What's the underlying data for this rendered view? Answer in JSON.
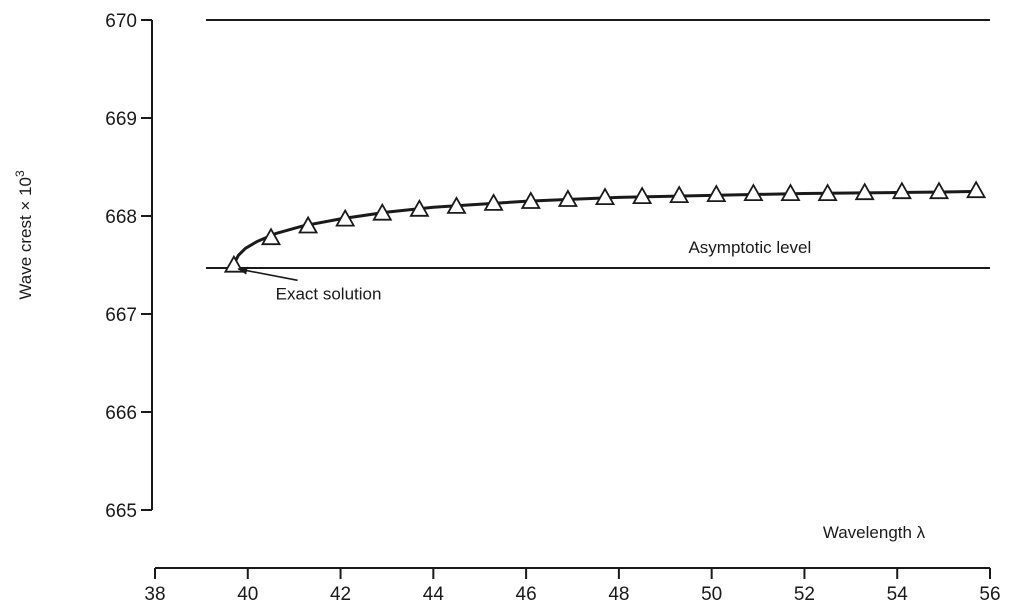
{
  "chart_data": {
    "type": "line",
    "xlabel": "Wavelength λ",
    "ylabel_main": "Wave crest × 10",
    "ylabel_exp": "3",
    "xlim": [
      38,
      56
    ],
    "ylim": [
      665,
      670
    ],
    "xticks": [
      38,
      40,
      42,
      44,
      46,
      48,
      50,
      52,
      54,
      56
    ],
    "yticks": [
      665,
      666,
      667,
      668,
      669,
      670
    ],
    "grid": false,
    "legend": "none",
    "reference_lines": [
      {
        "y": 670.0,
        "x_from": 39.1,
        "x_to": 56
      },
      {
        "y": 667.47,
        "x_from": 39.1,
        "x_to": 56
      }
    ],
    "curve": {
      "x": [
        39.7,
        39.72,
        39.8,
        39.95,
        40.2,
        40.6,
        41.2,
        42.0,
        43.0,
        44.0,
        45.0,
        46.0,
        47.0,
        48.0,
        49.0,
        50.0,
        51.0,
        52.0,
        53.0,
        54.0,
        55.0,
        55.6
      ],
      "y": [
        667.48,
        667.53,
        667.6,
        667.67,
        667.74,
        667.82,
        667.9,
        667.97,
        668.04,
        668.09,
        668.12,
        668.15,
        668.17,
        668.19,
        668.2,
        668.21,
        668.22,
        668.23,
        668.235,
        668.24,
        668.245,
        668.25
      ]
    },
    "series": [
      {
        "marker": "triangle",
        "x": [
          39.7,
          40.5,
          41.3,
          42.1,
          42.9,
          43.7,
          44.5,
          45.3,
          46.1,
          46.9,
          47.7,
          48.5,
          49.3,
          50.1,
          50.9,
          51.7,
          52.5,
          53.3,
          54.1,
          54.9,
          55.7
        ],
        "y": [
          667.49,
          667.77,
          667.89,
          667.96,
          668.02,
          668.06,
          668.09,
          668.12,
          668.14,
          668.16,
          668.18,
          668.19,
          668.2,
          668.21,
          668.22,
          668.22,
          668.22,
          668.23,
          668.24,
          668.24,
          668.25
        ]
      }
    ],
    "annotations": [
      {
        "text": "Asymptotic level",
        "x": 49.5,
        "y": 667.62
      },
      {
        "text": "Exact solution",
        "x": 40.6,
        "y": 667.15,
        "arrow_to_x": 39.75,
        "arrow_to_y": 667.47
      }
    ]
  }
}
